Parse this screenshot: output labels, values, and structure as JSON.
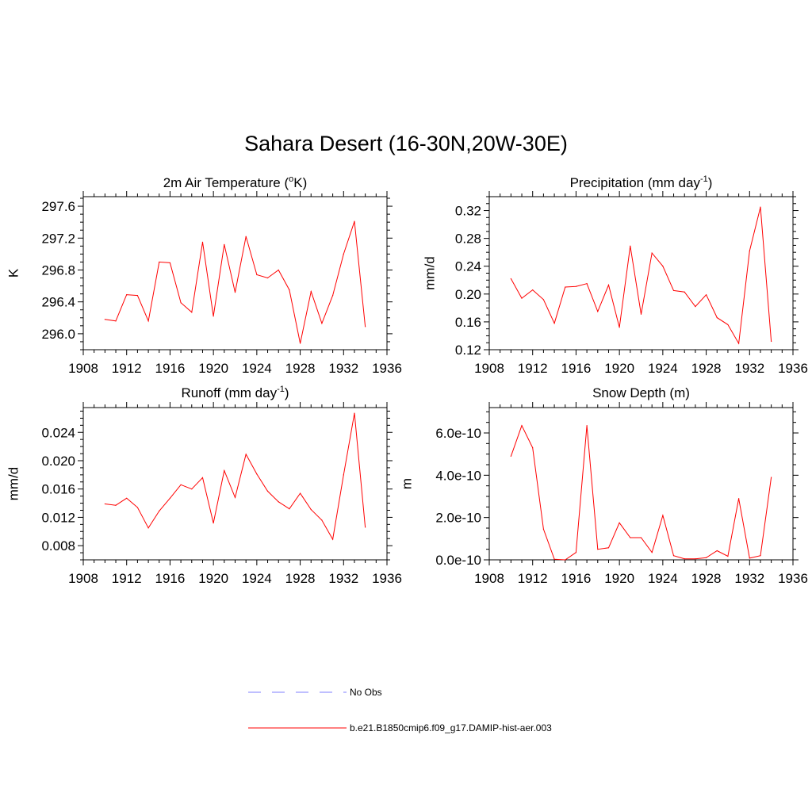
{
  "title": "Sahara Desert (16-30N,20W-30E)",
  "series_color": "#ff0000",
  "obs_color": "#9999ff",
  "chart_data": [
    {
      "type": "line",
      "title": "2m Air Temperature (",
      "title_sup": "o",
      "title_tail": "K)",
      "ylabel": "K",
      "xlim": [
        1908,
        1936
      ],
      "ylim": [
        295.8,
        297.72
      ],
      "xticks": [
        1908,
        1912,
        1916,
        1920,
        1924,
        1928,
        1932,
        1936
      ],
      "yticks": [
        296.0,
        296.4,
        296.8,
        297.2,
        297.6
      ],
      "ytick_labels": [
        "296.0",
        "296.4",
        "296.8",
        "297.2",
        "297.6"
      ],
      "x": [
        1910,
        1911,
        1912,
        1913,
        1914,
        1915,
        1916,
        1917,
        1918,
        1919,
        1920,
        1921,
        1922,
        1923,
        1924,
        1925,
        1926,
        1927,
        1928,
        1929,
        1930,
        1931,
        1932,
        1933,
        1934
      ],
      "values": [
        296.18,
        296.16,
        296.49,
        296.48,
        296.16,
        296.9,
        296.89,
        296.39,
        296.27,
        297.15,
        296.22,
        297.12,
        296.52,
        297.22,
        296.74,
        296.7,
        296.8,
        296.55,
        295.88,
        296.53,
        296.13,
        296.48,
        297.0,
        297.41,
        296.09
      ]
    },
    {
      "type": "line",
      "title": "Precipitation (mm day",
      "title_sup": "-1",
      "title_tail": ")",
      "ylabel": "mm/d",
      "xlim": [
        1908,
        1936
      ],
      "ylim": [
        0.12,
        0.34
      ],
      "xticks": [
        1908,
        1912,
        1916,
        1920,
        1924,
        1928,
        1932,
        1936
      ],
      "yticks": [
        0.12,
        0.16,
        0.2,
        0.24,
        0.28,
        0.32
      ],
      "ytick_labels": [
        "0.12",
        "0.16",
        "0.20",
        "0.24",
        "0.28",
        "0.32"
      ],
      "x": [
        1910,
        1911,
        1912,
        1913,
        1914,
        1915,
        1916,
        1917,
        1918,
        1919,
        1920,
        1921,
        1922,
        1923,
        1924,
        1925,
        1926,
        1927,
        1928,
        1929,
        1930,
        1931,
        1932,
        1933,
        1934
      ],
      "values": [
        0.222,
        0.194,
        0.206,
        0.192,
        0.158,
        0.21,
        0.211,
        0.215,
        0.175,
        0.213,
        0.152,
        0.269,
        0.171,
        0.259,
        0.24,
        0.205,
        0.203,
        0.182,
        0.199,
        0.166,
        0.156,
        0.129,
        0.262,
        0.325,
        0.132
      ]
    },
    {
      "type": "line",
      "title": "Runoff (mm day",
      "title_sup": "-1",
      "title_tail": ")",
      "ylabel": "mm/d",
      "xlim": [
        1908,
        1936
      ],
      "ylim": [
        0.006,
        0.0275
      ],
      "xticks": [
        1908,
        1912,
        1916,
        1920,
        1924,
        1928,
        1932,
        1936
      ],
      "yticks": [
        0.008,
        0.012,
        0.016,
        0.02,
        0.024
      ],
      "ytick_labels": [
        "0.008",
        "0.012",
        "0.016",
        "0.020",
        "0.024"
      ],
      "x": [
        1910,
        1911,
        1912,
        1913,
        1914,
        1915,
        1916,
        1917,
        1918,
        1919,
        1920,
        1921,
        1922,
        1923,
        1924,
        1925,
        1926,
        1927,
        1928,
        1929,
        1930,
        1931,
        1932,
        1933,
        1934
      ],
      "values": [
        0.0139,
        0.0137,
        0.0147,
        0.0134,
        0.0105,
        0.0129,
        0.0147,
        0.0166,
        0.016,
        0.0176,
        0.0112,
        0.0186,
        0.0148,
        0.0209,
        0.0181,
        0.0157,
        0.0142,
        0.0132,
        0.0154,
        0.0131,
        0.0116,
        0.0089,
        0.018,
        0.0267,
        0.0106
      ]
    },
    {
      "type": "line",
      "title": "Snow Depth (m)",
      "title_sup": "",
      "title_tail": "",
      "ylabel": "m",
      "xlim": [
        1908,
        1936
      ],
      "ylim": [
        0,
        7.2e-10
      ],
      "xticks": [
        1908,
        1912,
        1916,
        1920,
        1924,
        1928,
        1932,
        1936
      ],
      "yticks": [
        0,
        2e-10,
        4e-10,
        6e-10
      ],
      "ytick_labels": [
        "0.0e-10",
        "2.0e-10",
        "4.0e-10",
        "6.0e-10"
      ],
      "x": [
        1910,
        1911,
        1912,
        1913,
        1914,
        1915,
        1916,
        1917,
        1918,
        1919,
        1920,
        1921,
        1922,
        1923,
        1924,
        1925,
        1926,
        1927,
        1928,
        1929,
        1930,
        1931,
        1932,
        1933,
        1934
      ],
      "values": [
        4.9e-10,
        6.35e-10,
        5.3e-10,
        1.45e-10,
        3e-12,
        0.0,
        3.5e-11,
        6.35e-10,
        5e-11,
        5.7e-11,
        1.75e-10,
        1.05e-10,
        1.05e-10,
        3.5e-11,
        2.1e-10,
        2e-11,
        5e-12,
        5e-12,
        1e-11,
        4.3e-11,
        1.7e-11,
        2.9e-10,
        8e-12,
        2e-11,
        3.9e-10
      ]
    }
  ],
  "legend": [
    {
      "label": "No Obs",
      "style": "dashed"
    },
    {
      "label": "b.e21.B1850cmip6.f09_g17.DAMIP-hist-aer.003",
      "style": "solid"
    }
  ]
}
